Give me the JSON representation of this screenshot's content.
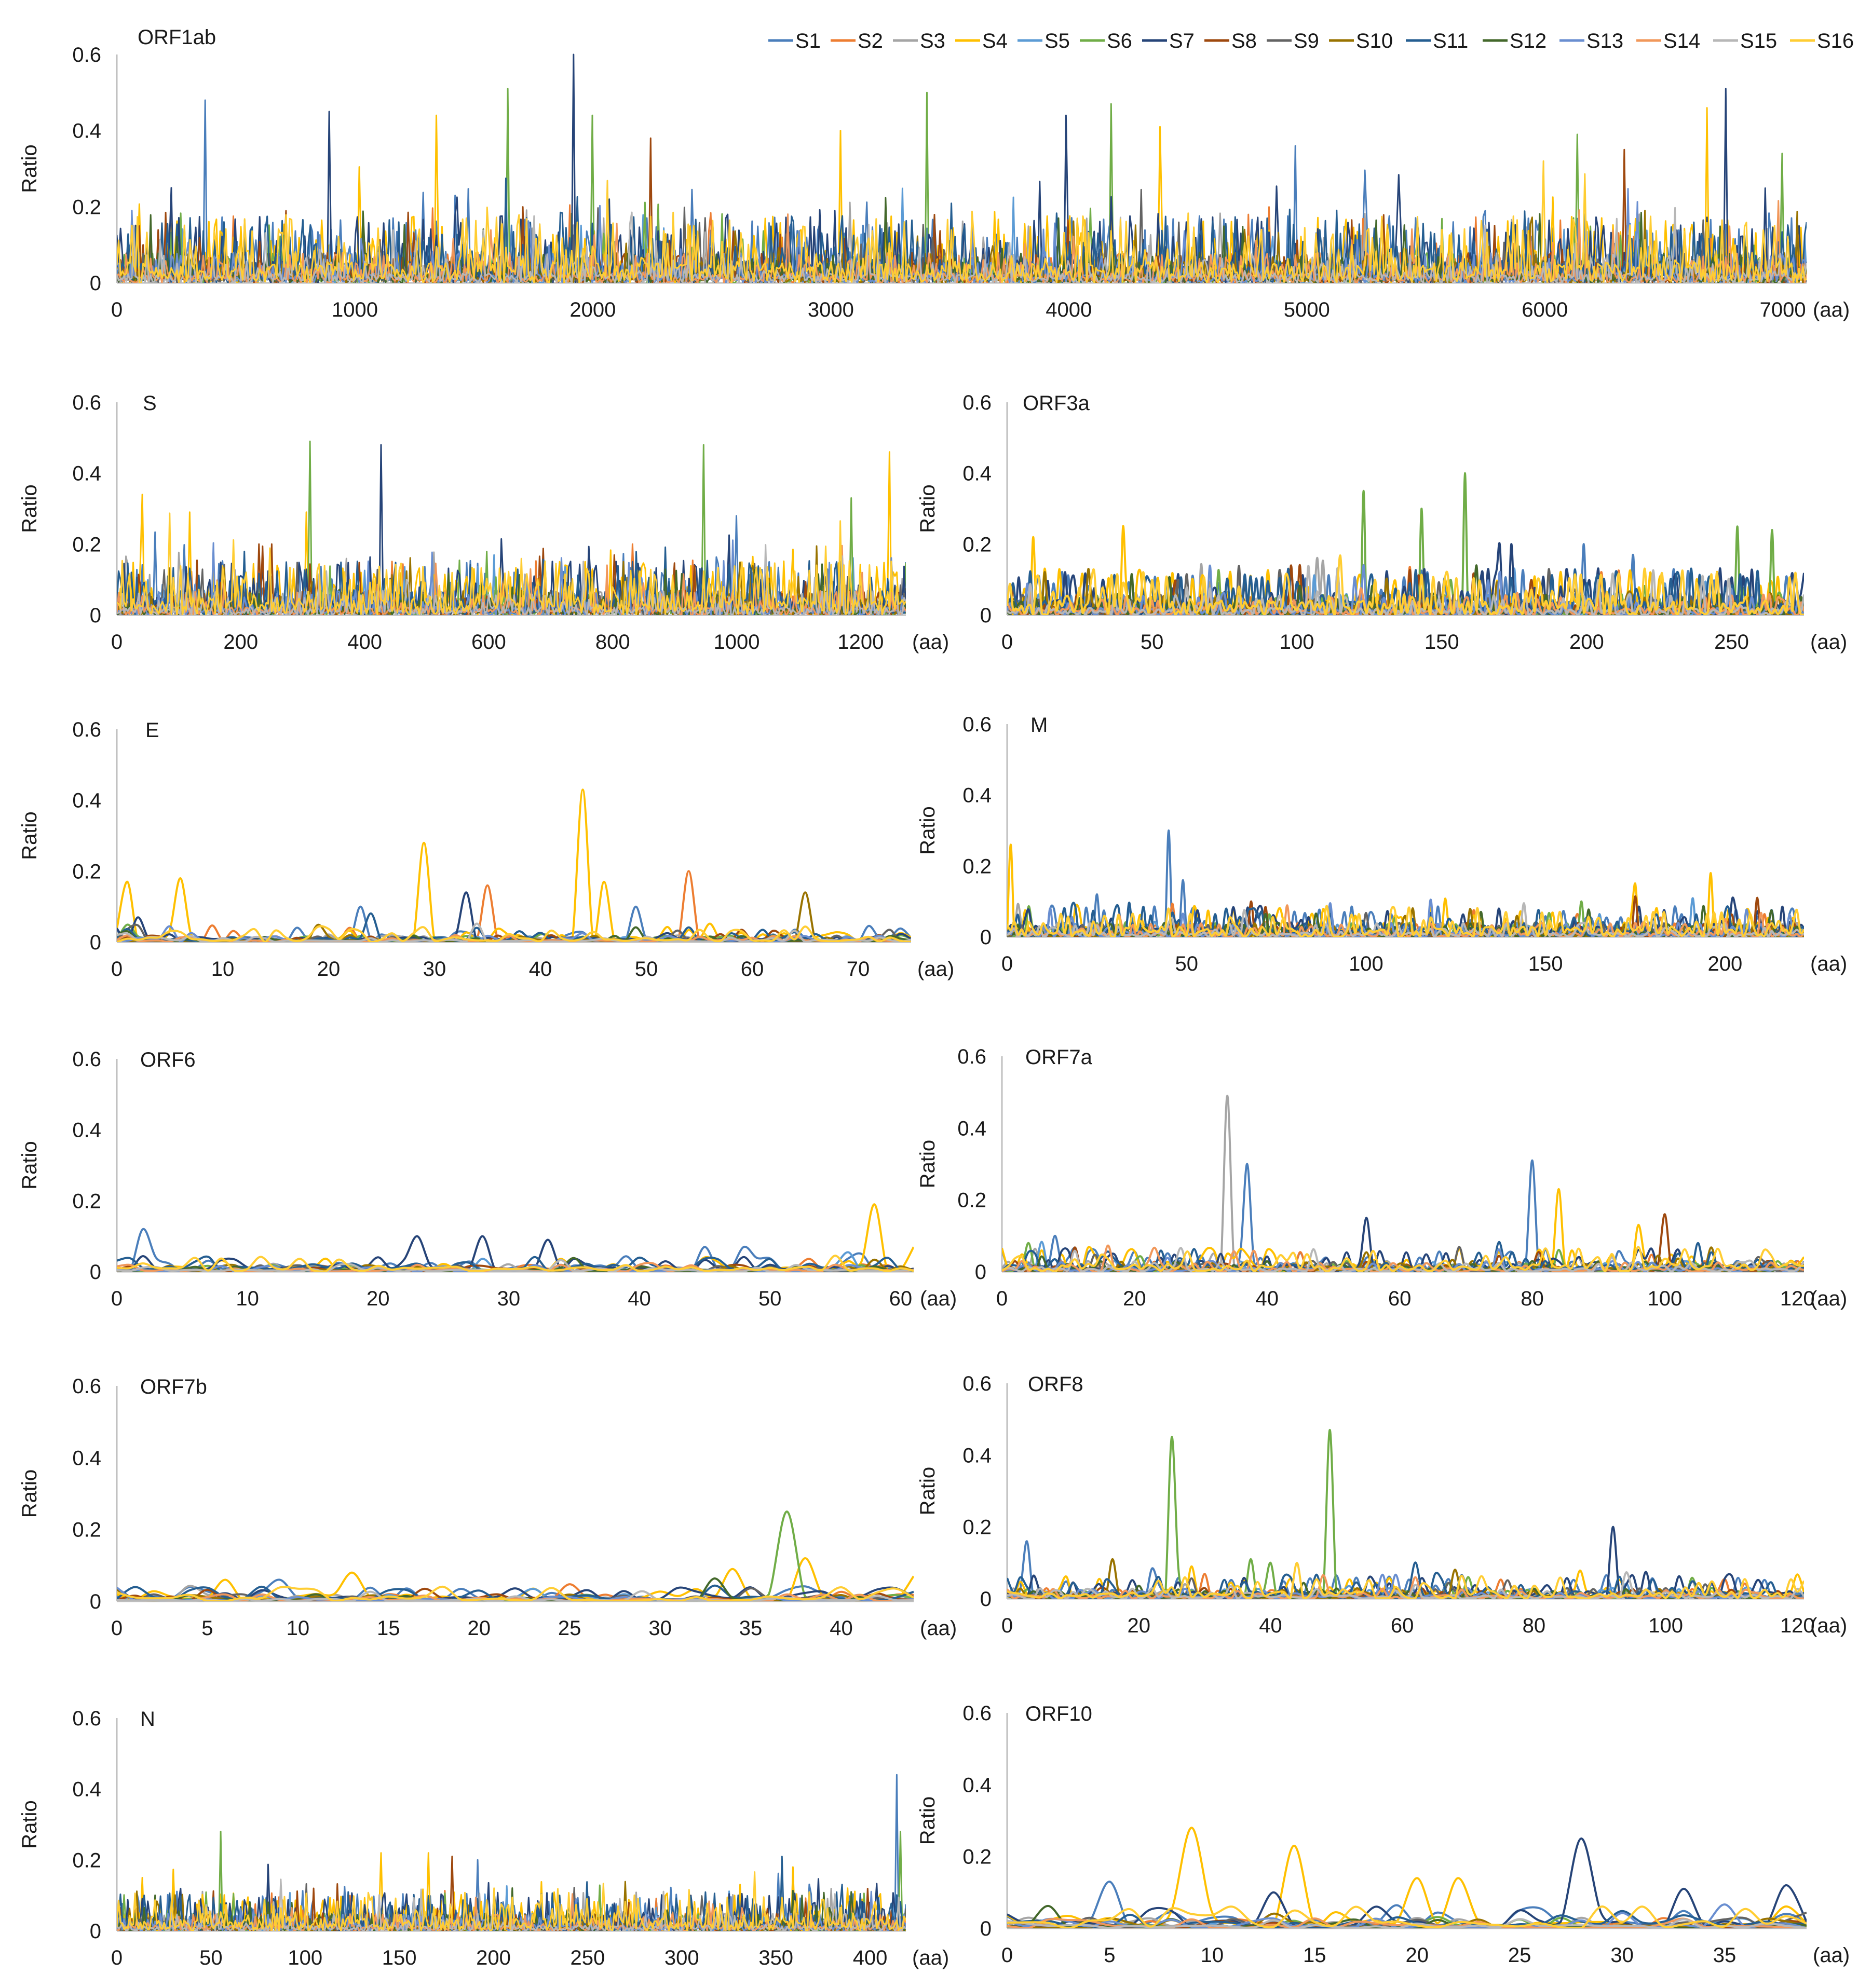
{
  "figure": {
    "legend": [
      {
        "name": "S1",
        "color": "#4a7ebb"
      },
      {
        "name": "S2",
        "color": "#ed7d31"
      },
      {
        "name": "S3",
        "color": "#a5a5a5"
      },
      {
        "name": "S4",
        "color": "#ffc000"
      },
      {
        "name": "S5",
        "color": "#5b9bd5"
      },
      {
        "name": "S6",
        "color": "#70ad47"
      },
      {
        "name": "S7",
        "color": "#264478"
      },
      {
        "name": "S8",
        "color": "#9e480e"
      },
      {
        "name": "S9",
        "color": "#636363"
      },
      {
        "name": "S10",
        "color": "#997300"
      },
      {
        "name": "S11",
        "color": "#255e91"
      },
      {
        "name": "S12",
        "color": "#43682b"
      },
      {
        "name": "S13",
        "color": "#698ed0"
      },
      {
        "name": "S14",
        "color": "#f1975a"
      },
      {
        "name": "S15",
        "color": "#b7b7b7"
      },
      {
        "name": "S16",
        "color": "#ffcd33"
      }
    ],
    "unit_label": "(aa)",
    "ylabel": "Ratio"
  },
  "chart_data": [
    {
      "type": "line",
      "title": "ORF1ab",
      "xlabel": "(aa)",
      "ylabel": "Ratio",
      "xlim": [
        0,
        7100
      ],
      "xticks": [
        0,
        1000,
        2000,
        3000,
        4000,
        5000,
        6000,
        7000
      ],
      "ylim": [
        0,
        0.6
      ],
      "yticks": [
        0,
        0.2,
        0.4,
        0.6
      ],
      "peaks": [
        {
          "series": "S7",
          "x": 1920,
          "y": 0.6
        },
        {
          "series": "S7",
          "x": 6760,
          "y": 0.51
        },
        {
          "series": "S6",
          "x": 1640,
          "y": 0.51
        },
        {
          "series": "S6",
          "x": 3400,
          "y": 0.5
        },
        {
          "series": "S1",
          "x": 370,
          "y": 0.48
        },
        {
          "series": "S6",
          "x": 4180,
          "y": 0.47
        },
        {
          "series": "S4",
          "x": 6680,
          "y": 0.46
        },
        {
          "series": "S7",
          "x": 890,
          "y": 0.45
        },
        {
          "series": "S7",
          "x": 3990,
          "y": 0.44
        },
        {
          "series": "S4",
          "x": 1340,
          "y": 0.44
        },
        {
          "series": "S6",
          "x": 2000,
          "y": 0.44
        },
        {
          "series": "S4",
          "x": 4380,
          "y": 0.41
        },
        {
          "series": "S6",
          "x": 6140,
          "y": 0.39
        },
        {
          "series": "S8",
          "x": 2240,
          "y": 0.38
        },
        {
          "series": "S4",
          "x": 3040,
          "y": 0.4
        },
        {
          "series": "S6",
          "x": 7000,
          "y": 0.34
        },
        {
          "series": "S8",
          "x": 6330,
          "y": 0.35
        },
        {
          "series": "S1",
          "x": 4950,
          "y": 0.36
        }
      ],
      "baseline_level": 0.08
    },
    {
      "type": "line",
      "title": "S",
      "xlabel": "(aa)",
      "ylabel": "Ratio",
      "xlim": [
        0,
        1273
      ],
      "xticks": [
        0,
        200,
        400,
        600,
        800,
        1000,
        1200
      ],
      "ylim": [
        0,
        0.6
      ],
      "yticks": [
        0,
        0.2,
        0.4,
        0.6
      ],
      "peaks": [
        {
          "series": "S6",
          "x": 312,
          "y": 0.49
        },
        {
          "series": "S7",
          "x": 426,
          "y": 0.48
        },
        {
          "series": "S6",
          "x": 948,
          "y": 0.48
        },
        {
          "series": "S4",
          "x": 1248,
          "y": 0.46
        },
        {
          "series": "S4",
          "x": 42,
          "y": 0.34
        },
        {
          "series": "S6",
          "x": 1185,
          "y": 0.33
        },
        {
          "series": "S4",
          "x": 305,
          "y": 0.29
        },
        {
          "series": "S4",
          "x": 118,
          "y": 0.29
        },
        {
          "series": "S1",
          "x": 1000,
          "y": 0.28
        },
        {
          "series": "S8",
          "x": 230,
          "y": 0.2
        },
        {
          "series": "S2",
          "x": 833,
          "y": 0.2
        },
        {
          "series": "S8",
          "x": 250,
          "y": 0.2
        }
      ],
      "baseline_level": 0.07
    },
    {
      "type": "line",
      "title": "ORF3a",
      "xlabel": "(aa)",
      "ylabel": "Ratio",
      "xlim": [
        0,
        275
      ],
      "xticks": [
        0,
        50,
        100,
        150,
        200,
        250
      ],
      "ylim": [
        0,
        0.6
      ],
      "yticks": [
        0,
        0.2,
        0.4,
        0.6
      ],
      "peaks": [
        {
          "series": "S6",
          "x": 158,
          "y": 0.4
        },
        {
          "series": "S6",
          "x": 123,
          "y": 0.35
        },
        {
          "series": "S6",
          "x": 143,
          "y": 0.3
        },
        {
          "series": "S4",
          "x": 40,
          "y": 0.25
        },
        {
          "series": "S6",
          "x": 252,
          "y": 0.25
        },
        {
          "series": "S6",
          "x": 264,
          "y": 0.24
        },
        {
          "series": "S4",
          "x": 9,
          "y": 0.22
        },
        {
          "series": "S7",
          "x": 170,
          "y": 0.2
        },
        {
          "series": "S7",
          "x": 174,
          "y": 0.2
        },
        {
          "series": "S1",
          "x": 199,
          "y": 0.2
        },
        {
          "series": "S1",
          "x": 216,
          "y": 0.17
        },
        {
          "series": "S8",
          "x": 98,
          "y": 0.14
        }
      ],
      "baseline_level": 0.06
    },
    {
      "type": "line",
      "title": "E",
      "xlabel": "(aa)",
      "ylabel": "Ratio",
      "xlim": [
        0,
        75
      ],
      "xticks": [
        0,
        10,
        20,
        30,
        40,
        50,
        60,
        70
      ],
      "ylim": [
        0,
        0.6
      ],
      "yticks": [
        0,
        0.2,
        0.4,
        0.6
      ],
      "peaks": [
        {
          "series": "S4",
          "x": 44,
          "y": 0.43
        },
        {
          "series": "S4",
          "x": 29,
          "y": 0.28
        },
        {
          "series": "S2",
          "x": 54,
          "y": 0.2
        },
        {
          "series": "S4",
          "x": 6,
          "y": 0.18
        },
        {
          "series": "S4",
          "x": 46,
          "y": 0.17
        },
        {
          "series": "S4",
          "x": 1,
          "y": 0.17
        },
        {
          "series": "S2",
          "x": 35,
          "y": 0.16
        },
        {
          "series": "S7",
          "x": 33,
          "y": 0.14
        },
        {
          "series": "S10",
          "x": 65,
          "y": 0.14
        },
        {
          "series": "S1",
          "x": 23,
          "y": 0.1
        },
        {
          "series": "S1",
          "x": 49,
          "y": 0.1
        },
        {
          "series": "S7",
          "x": 2,
          "y": 0.07
        }
      ],
      "baseline_level": 0.02
    },
    {
      "type": "line",
      "title": "M",
      "xlabel": "(aa)",
      "ylabel": "Ratio",
      "xlim": [
        0,
        222
      ],
      "xticks": [
        0,
        50,
        100,
        150,
        200
      ],
      "ylim": [
        0,
        0.6
      ],
      "yticks": [
        0,
        0.2,
        0.4,
        0.6
      ],
      "peaks": [
        {
          "series": "S1",
          "x": 45,
          "y": 0.3
        },
        {
          "series": "S4",
          "x": 1,
          "y": 0.26
        },
        {
          "series": "S4",
          "x": 196,
          "y": 0.18
        },
        {
          "series": "S1",
          "x": 49,
          "y": 0.16
        },
        {
          "series": "S4",
          "x": 175,
          "y": 0.15
        },
        {
          "series": "S1",
          "x": 25,
          "y": 0.12
        },
        {
          "series": "S8",
          "x": 68,
          "y": 0.1
        },
        {
          "series": "S8",
          "x": 209,
          "y": 0.11
        },
        {
          "series": "S6",
          "x": 160,
          "y": 0.1
        }
      ],
      "baseline_level": 0.04
    },
    {
      "type": "line",
      "title": "ORF6",
      "xlabel": "(aa)",
      "ylabel": "Ratio",
      "xlim": [
        0,
        61
      ],
      "xticks": [
        0,
        10,
        20,
        30,
        40,
        50,
        60
      ],
      "ylim": [
        0,
        0.6
      ],
      "yticks": [
        0,
        0.2,
        0.4,
        0.6
      ],
      "peaks": [
        {
          "series": "S4",
          "x": 58,
          "y": 0.19
        },
        {
          "series": "S1",
          "x": 2,
          "y": 0.12
        },
        {
          "series": "S7",
          "x": 23,
          "y": 0.1
        },
        {
          "series": "S7",
          "x": 28,
          "y": 0.1
        },
        {
          "series": "S7",
          "x": 33,
          "y": 0.09
        },
        {
          "series": "S1",
          "x": 45,
          "y": 0.07
        },
        {
          "series": "S1",
          "x": 48,
          "y": 0.07
        },
        {
          "series": "S4",
          "x": 61,
          "y": 0.07
        }
      ],
      "baseline_level": 0.02
    },
    {
      "type": "line",
      "title": "ORF7a",
      "xlabel": "(aa)",
      "ylabel": "Ratio",
      "xlim": [
        0,
        121
      ],
      "xticks": [
        0,
        20,
        40,
        60,
        80,
        100,
        120
      ],
      "ylim": [
        0,
        0.6
      ],
      "yticks": [
        0,
        0.2,
        0.4,
        0.6
      ],
      "peaks": [
        {
          "series": "S3",
          "x": 34,
          "y": 0.49
        },
        {
          "series": "S1",
          "x": 80,
          "y": 0.31
        },
        {
          "series": "S1",
          "x": 37,
          "y": 0.3
        },
        {
          "series": "S4",
          "x": 84,
          "y": 0.23
        },
        {
          "series": "S8",
          "x": 100,
          "y": 0.16
        },
        {
          "series": "S7",
          "x": 55,
          "y": 0.15
        },
        {
          "series": "S4",
          "x": 96,
          "y": 0.13
        },
        {
          "series": "S1",
          "x": 8,
          "y": 0.1
        },
        {
          "series": "S6",
          "x": 4,
          "y": 0.08
        }
      ],
      "baseline_level": 0.03
    },
    {
      "type": "line",
      "title": "ORF7b",
      "xlabel": "(aa)",
      "ylabel": "Ratio",
      "xlim": [
        0,
        44
      ],
      "xticks": [
        0,
        5,
        10,
        15,
        20,
        25,
        30,
        35,
        40
      ],
      "ylim": [
        0,
        0.6
      ],
      "yticks": [
        0,
        0.2,
        0.4,
        0.6
      ],
      "peaks": [
        {
          "series": "S6",
          "x": 37,
          "y": 0.25
        },
        {
          "series": "S4",
          "x": 38,
          "y": 0.12
        },
        {
          "series": "S4",
          "x": 34,
          "y": 0.09
        },
        {
          "series": "S4",
          "x": 13,
          "y": 0.08
        },
        {
          "series": "S4",
          "x": 44,
          "y": 0.07
        },
        {
          "series": "S4",
          "x": 6,
          "y": 0.06
        },
        {
          "series": "S1",
          "x": 9,
          "y": 0.06
        }
      ],
      "baseline_level": 0.02
    },
    {
      "type": "line",
      "title": "ORF8",
      "xlabel": "(aa)",
      "ylabel": "Ratio",
      "xlim": [
        0,
        121
      ],
      "xticks": [
        0,
        20,
        40,
        60,
        80,
        100,
        120
      ],
      "ylim": [
        0,
        0.6
      ],
      "yticks": [
        0,
        0.2,
        0.4,
        0.6
      ],
      "peaks": [
        {
          "series": "S6",
          "x": 49,
          "y": 0.47
        },
        {
          "series": "S6",
          "x": 25,
          "y": 0.45
        },
        {
          "series": "S7",
          "x": 92,
          "y": 0.2
        },
        {
          "series": "S1",
          "x": 3,
          "y": 0.16
        },
        {
          "series": "S10",
          "x": 16,
          "y": 0.11
        },
        {
          "series": "S6",
          "x": 37,
          "y": 0.11
        },
        {
          "series": "S6",
          "x": 40,
          "y": 0.1
        },
        {
          "series": "S4",
          "x": 28,
          "y": 0.09
        }
      ],
      "baseline_level": 0.03
    },
    {
      "type": "line",
      "title": "N",
      "xlabel": "(aa)",
      "ylabel": "Ratio",
      "xlim": [
        0,
        419
      ],
      "xticks": [
        0,
        50,
        100,
        150,
        200,
        250,
        300,
        350,
        400
      ],
      "ylim": [
        0,
        0.6
      ],
      "yticks": [
        0,
        0.2,
        0.4,
        0.6
      ],
      "peaks": [
        {
          "series": "S1",
          "x": 414,
          "y": 0.44
        },
        {
          "series": "S6",
          "x": 55,
          "y": 0.28
        },
        {
          "series": "S6",
          "x": 416,
          "y": 0.28
        },
        {
          "series": "S4",
          "x": 140,
          "y": 0.22
        },
        {
          "series": "S4",
          "x": 165,
          "y": 0.22
        },
        {
          "series": "S8",
          "x": 178,
          "y": 0.21
        },
        {
          "series": "S4",
          "x": 359,
          "y": 0.18
        },
        {
          "series": "S1",
          "x": 192,
          "y": 0.2
        },
        {
          "series": "S4",
          "x": 14,
          "y": 0.15
        }
      ],
      "baseline_level": 0.05
    },
    {
      "type": "line",
      "title": "ORF10",
      "xlabel": "(aa)",
      "ylabel": "Ratio",
      "xlim": [
        0,
        39
      ],
      "xticks": [
        0,
        5,
        10,
        15,
        20,
        25,
        30,
        35
      ],
      "ylim": [
        0,
        0.6
      ],
      "yticks": [
        0,
        0.2,
        0.4,
        0.6
      ],
      "peaks": [
        {
          "series": "S4",
          "x": 9,
          "y": 0.28
        },
        {
          "series": "S7",
          "x": 28,
          "y": 0.25
        },
        {
          "series": "S4",
          "x": 14,
          "y": 0.23
        },
        {
          "series": "S4",
          "x": 20,
          "y": 0.14
        },
        {
          "series": "S4",
          "x": 22,
          "y": 0.14
        },
        {
          "series": "S1",
          "x": 5,
          "y": 0.13
        },
        {
          "series": "S7",
          "x": 38,
          "y": 0.12
        },
        {
          "series": "S7",
          "x": 33,
          "y": 0.11
        },
        {
          "series": "S7",
          "x": 13,
          "y": 0.1
        }
      ],
      "baseline_level": 0.03
    }
  ]
}
